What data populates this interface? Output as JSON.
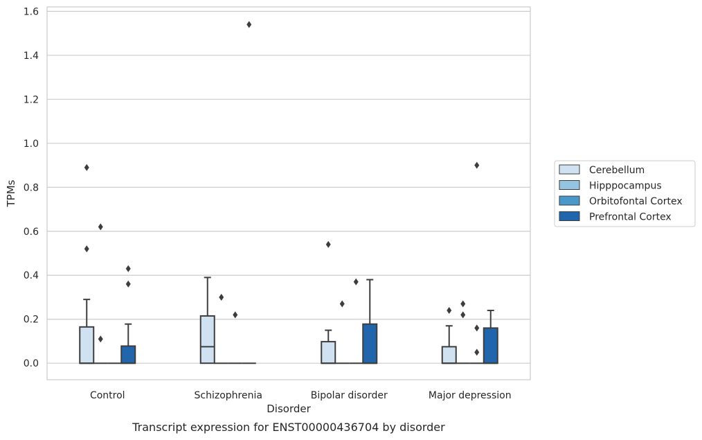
{
  "chart_data": {
    "type": "box",
    "title": "",
    "caption": "Transcript expression for ENST00000436704 by disorder",
    "xlabel": "Disorder",
    "ylabel": "TPMs",
    "ylim": [
      -0.075,
      1.62
    ],
    "yticks": [
      "0.0",
      "0.2",
      "0.4",
      "0.6",
      "0.8",
      "1.0",
      "1.2",
      "1.4",
      "1.6"
    ],
    "grid": true,
    "legend_position": "right",
    "categories": [
      "Control",
      "Schizophrenia",
      "Bipolar disorder",
      "Major depression"
    ],
    "series": [
      {
        "name": "Cerebellum",
        "color": "#d0e1f2",
        "boxes": [
          {
            "q1": 0,
            "median": 0,
            "q3": 0.165,
            "whisker_low": 0,
            "whisker_high": 0.29,
            "outliers": [
              0.52,
              0.89
            ]
          },
          {
            "q1": 0,
            "median": 0.075,
            "q3": 0.215,
            "whisker_low": 0,
            "whisker_high": 0.39,
            "outliers": []
          },
          {
            "q1": 0,
            "median": 0,
            "q3": 0.098,
            "whisker_low": 0,
            "whisker_high": 0.15,
            "outliers": [
              0.54
            ]
          },
          {
            "q1": 0,
            "median": 0,
            "q3": 0.075,
            "whisker_low": 0,
            "whisker_high": 0.17,
            "outliers": [
              0.24
            ]
          }
        ]
      },
      {
        "name": "Hipppocampus",
        "color": "#94c4df",
        "boxes": [
          {
            "q1": 0,
            "median": 0,
            "q3": 0,
            "whisker_low": 0,
            "whisker_high": 0,
            "outliers": [
              0.11,
              0.62
            ]
          },
          {
            "q1": 0,
            "median": 0,
            "q3": 0,
            "whisker_low": 0,
            "whisker_high": 0,
            "outliers": [
              0.3
            ]
          },
          {
            "q1": 0,
            "median": 0,
            "q3": 0,
            "whisker_low": 0,
            "whisker_high": 0,
            "outliers": [
              0.27
            ]
          },
          {
            "q1": 0,
            "median": 0,
            "q3": 0,
            "whisker_low": 0,
            "whisker_high": 0,
            "outliers": [
              0.22,
              0.27
            ]
          }
        ]
      },
      {
        "name": "Orbitofontal Cortex",
        "color": "#4a98c9",
        "boxes": [
          {
            "q1": 0,
            "median": 0,
            "q3": 0,
            "whisker_low": 0,
            "whisker_high": 0,
            "outliers": []
          },
          {
            "q1": 0,
            "median": 0,
            "q3": 0,
            "whisker_low": 0,
            "whisker_high": 0,
            "outliers": [
              0.22
            ]
          },
          {
            "q1": 0,
            "median": 0,
            "q3": 0,
            "whisker_low": 0,
            "whisker_high": 0,
            "outliers": [
              0.37
            ]
          },
          {
            "q1": 0,
            "median": 0,
            "q3": 0,
            "whisker_low": 0,
            "whisker_high": 0,
            "outliers": [
              0.05,
              0.16,
              0.9
            ]
          }
        ]
      },
      {
        "name": "Prefrontal Cortex",
        "color": "#2166ac",
        "boxes": [
          {
            "q1": 0,
            "median": 0,
            "q3": 0.078,
            "whisker_low": 0,
            "whisker_high": 0.178,
            "outliers": [
              0.36,
              0.43
            ]
          },
          {
            "q1": 0,
            "median": 0,
            "q3": 0,
            "whisker_low": 0,
            "whisker_high": 0,
            "outliers": [
              1.54
            ]
          },
          {
            "q1": 0,
            "median": 0,
            "q3": 0.178,
            "whisker_low": 0,
            "whisker_high": 0.38,
            "outliers": []
          },
          {
            "q1": 0,
            "median": 0,
            "q3": 0.16,
            "whisker_low": 0,
            "whisker_high": 0.24,
            "outliers": []
          }
        ]
      }
    ]
  }
}
